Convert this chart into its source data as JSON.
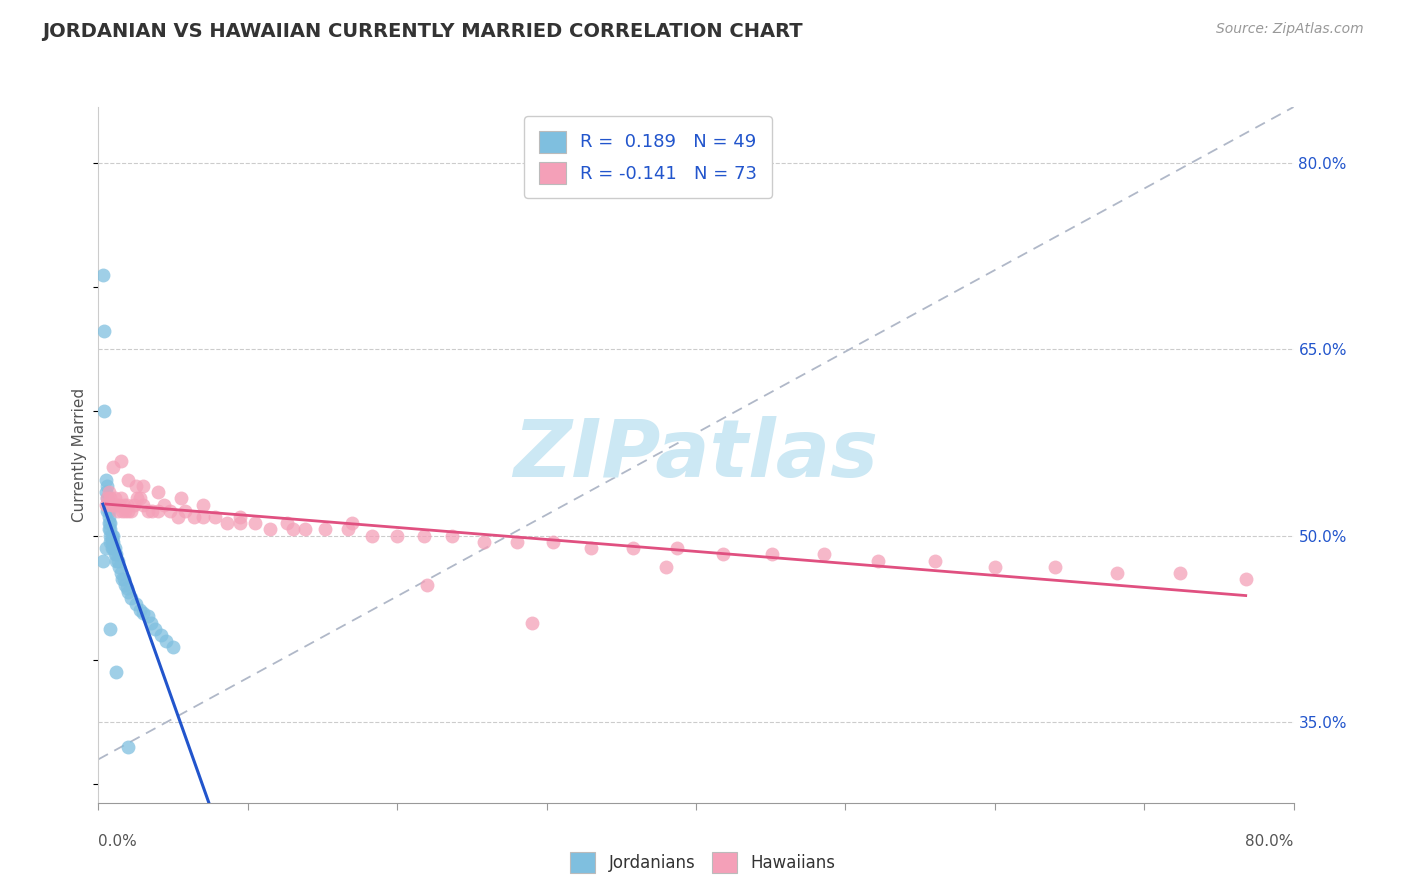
{
  "title": "JORDANIAN VS HAWAIIAN CURRENTLY MARRIED CORRELATION CHART",
  "source_text": "Source: ZipAtlas.com",
  "ylabel": "Currently Married",
  "xlim": [
    0.0,
    0.8
  ],
  "ylim": [
    0.285,
    0.845
  ],
  "xtick_values": [
    0.0,
    0.1,
    0.2,
    0.3,
    0.4,
    0.5,
    0.6,
    0.7,
    0.8
  ],
  "xtick_major_values": [
    0.0,
    0.8
  ],
  "xtick_major_labels": [
    "0.0%",
    "80.0%"
  ],
  "ytick_values": [
    0.35,
    0.5,
    0.65,
    0.8
  ],
  "ytick_labels": [
    "35.0%",
    "50.0%",
    "65.0%",
    "80.0%"
  ],
  "jordanian_color": "#7fbfdf",
  "hawaiian_color": "#f4a0b8",
  "jordanian_line_color": "#2255cc",
  "hawaiian_line_color": "#e05080",
  "diagonal_color": "#b0b8c8",
  "jordanian_R": 0.189,
  "jordanian_N": 49,
  "hawaiian_R": -0.141,
  "hawaiian_N": 73,
  "background_color": "#ffffff",
  "watermark_color": "#cce8f4",
  "grid_color": "#cccccc",
  "jordanian_x": [
    0.003,
    0.004,
    0.004,
    0.005,
    0.005,
    0.006,
    0.006,
    0.006,
    0.007,
    0.007,
    0.007,
    0.007,
    0.008,
    0.008,
    0.008,
    0.008,
    0.009,
    0.009,
    0.009,
    0.01,
    0.01,
    0.01,
    0.011,
    0.011,
    0.012,
    0.012,
    0.013,
    0.014,
    0.015,
    0.016,
    0.017,
    0.018,
    0.019,
    0.02,
    0.022,
    0.025,
    0.028,
    0.03,
    0.033,
    0.035,
    0.038,
    0.042,
    0.045,
    0.05,
    0.003,
    0.005,
    0.008,
    0.012,
    0.02
  ],
  "jordanian_y": [
    0.71,
    0.665,
    0.6,
    0.545,
    0.535,
    0.54,
    0.53,
    0.52,
    0.52,
    0.515,
    0.51,
    0.505,
    0.51,
    0.505,
    0.5,
    0.495,
    0.5,
    0.495,
    0.49,
    0.5,
    0.495,
    0.49,
    0.49,
    0.485,
    0.485,
    0.48,
    0.48,
    0.475,
    0.47,
    0.465,
    0.465,
    0.46,
    0.458,
    0.455,
    0.45,
    0.445,
    0.44,
    0.438,
    0.435,
    0.43,
    0.425,
    0.42,
    0.415,
    0.41,
    0.48,
    0.49,
    0.425,
    0.39,
    0.33
  ],
  "hawaiian_x": [
    0.005,
    0.006,
    0.007,
    0.008,
    0.009,
    0.01,
    0.011,
    0.012,
    0.013,
    0.014,
    0.015,
    0.016,
    0.017,
    0.018,
    0.019,
    0.02,
    0.022,
    0.024,
    0.026,
    0.028,
    0.03,
    0.033,
    0.036,
    0.04,
    0.044,
    0.048,
    0.053,
    0.058,
    0.064,
    0.07,
    0.078,
    0.086,
    0.095,
    0.105,
    0.115,
    0.126,
    0.138,
    0.152,
    0.167,
    0.183,
    0.2,
    0.218,
    0.237,
    0.258,
    0.28,
    0.304,
    0.33,
    0.358,
    0.387,
    0.418,
    0.451,
    0.486,
    0.522,
    0.56,
    0.6,
    0.64,
    0.682,
    0.724,
    0.768,
    0.01,
    0.015,
    0.02,
    0.025,
    0.03,
    0.04,
    0.055,
    0.07,
    0.095,
    0.13,
    0.17,
    0.22,
    0.29,
    0.38
  ],
  "hawaiian_y": [
    0.525,
    0.53,
    0.535,
    0.53,
    0.525,
    0.525,
    0.53,
    0.525,
    0.52,
    0.525,
    0.53,
    0.52,
    0.525,
    0.52,
    0.525,
    0.52,
    0.52,
    0.525,
    0.53,
    0.53,
    0.525,
    0.52,
    0.52,
    0.52,
    0.525,
    0.52,
    0.515,
    0.52,
    0.515,
    0.515,
    0.515,
    0.51,
    0.51,
    0.51,
    0.505,
    0.51,
    0.505,
    0.505,
    0.505,
    0.5,
    0.5,
    0.5,
    0.5,
    0.495,
    0.495,
    0.495,
    0.49,
    0.49,
    0.49,
    0.485,
    0.485,
    0.485,
    0.48,
    0.48,
    0.475,
    0.475,
    0.47,
    0.47,
    0.465,
    0.555,
    0.56,
    0.545,
    0.54,
    0.54,
    0.535,
    0.53,
    0.525,
    0.515,
    0.505,
    0.51,
    0.46,
    0.43,
    0.475
  ]
}
